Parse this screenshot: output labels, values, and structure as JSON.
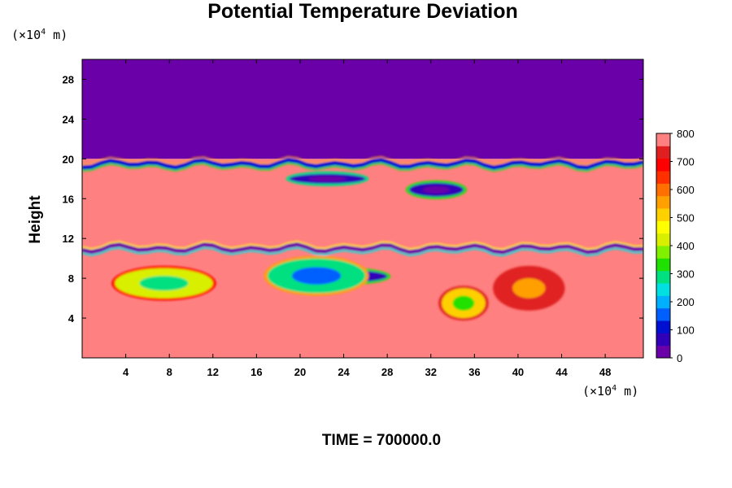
{
  "chart_data": {
    "type": "heatmap",
    "title": "Potential Temperature Deviation",
    "xlabel": "",
    "ylabel": "Height",
    "x_unit": "(×10",
    "x_unit_exp": "4",
    "x_unit_tail": " m)",
    "y_unit": "(×10",
    "y_unit_exp": "4",
    "y_unit_tail": " m)",
    "xlim": [
      0,
      51.5
    ],
    "ylim": [
      0,
      30
    ],
    "x_ticks": [
      4,
      8,
      12,
      16,
      20,
      24,
      28,
      32,
      36,
      40,
      44,
      48
    ],
    "y_ticks": [
      4,
      8,
      12,
      16,
      20,
      24,
      28
    ],
    "colorbar": {
      "range": [
        0,
        800
      ],
      "ticks": [
        0,
        100,
        200,
        300,
        400,
        500,
        600,
        700,
        800
      ],
      "colors": [
        "#6a00a8",
        "#3000b8",
        "#0010d0",
        "#0060ff",
        "#00b0ff",
        "#00e0e0",
        "#00e080",
        "#20e000",
        "#80f000",
        "#d8f000",
        "#ffff00",
        "#ffd000",
        "#ffa000",
        "#ff7000",
        "#ff3000",
        "#ff0000",
        "#e02020",
        "#ff8080"
      ]
    },
    "field_regions": [
      {
        "name": "upper-layer",
        "y": [
          20,
          30
        ],
        "value": 0
      },
      {
        "name": "mid-layer",
        "y": [
          11,
          20
        ],
        "value": 780
      },
      {
        "name": "lower-layer",
        "y": [
          0,
          11
        ],
        "value": 780
      }
    ],
    "features": [
      {
        "name": "band",
        "x": [
          0,
          51.5
        ],
        "y": 11,
        "value": 0
      },
      {
        "name": "band",
        "x": [
          0,
          51.5
        ],
        "y": 19.5,
        "value": 100
      },
      {
        "name": "blob",
        "x": [
          19,
          26
        ],
        "y": [
          17.5,
          18.5
        ],
        "value": 50
      },
      {
        "name": "blob",
        "x": [
          30,
          35
        ],
        "y": [
          16.2,
          17.6
        ],
        "value": 80
      },
      {
        "name": "blob",
        "x": [
          21,
          28
        ],
        "y": [
          7.6,
          8.8
        ],
        "value": 80
      },
      {
        "name": "blob",
        "x": [
          3,
          12
        ],
        "y": [
          6,
          9
        ],
        "value": 420
      },
      {
        "name": "blob",
        "x": [
          17,
          26
        ],
        "y": [
          6.5,
          10
        ],
        "value": 300
      },
      {
        "name": "blob",
        "x": [
          33,
          37
        ],
        "y": [
          4,
          7
        ],
        "value": 500
      },
      {
        "name": "blob",
        "x": [
          38,
          44
        ],
        "y": [
          5,
          9
        ],
        "value": 720
      }
    ],
    "footer": "TIME = 700000.0"
  }
}
